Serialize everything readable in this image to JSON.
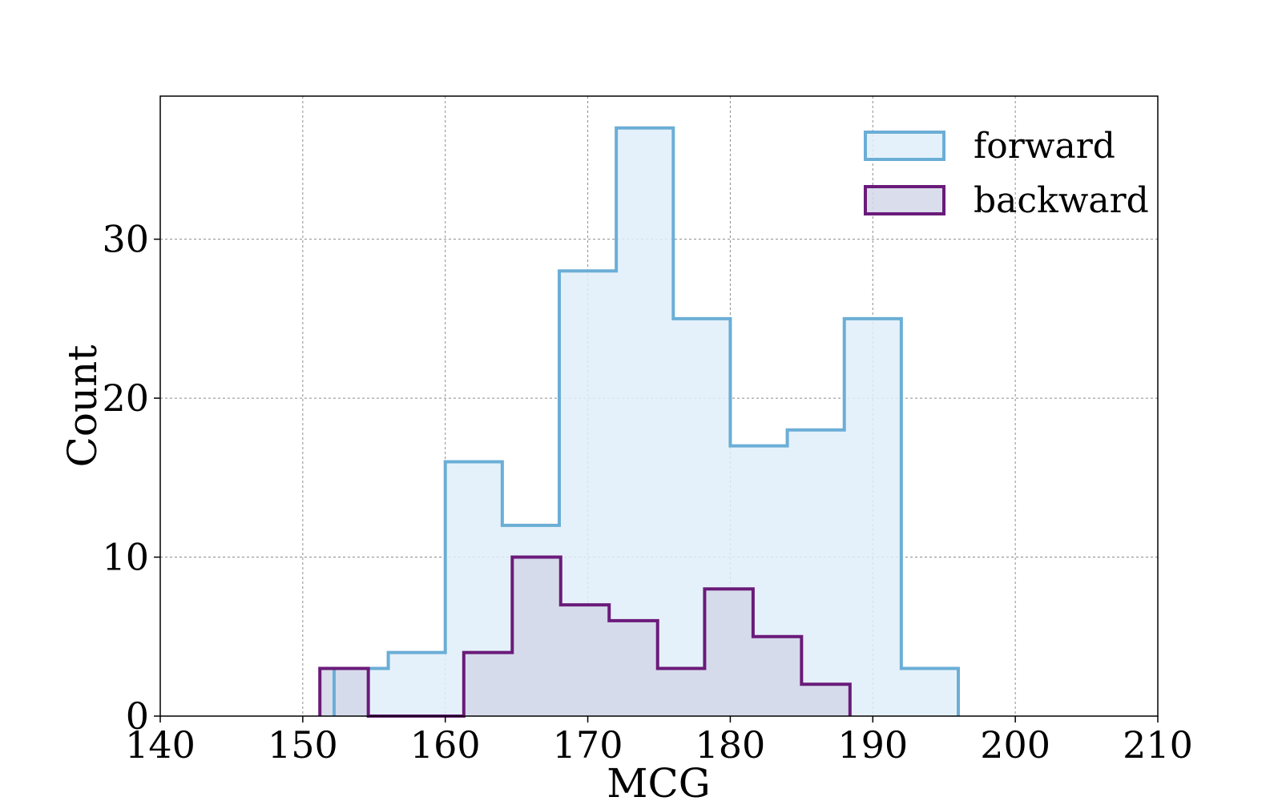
{
  "chart_data": {
    "type": "histogram",
    "title": "",
    "xlabel": "MCG",
    "ylabel": "Count",
    "xlim": [
      140,
      210
    ],
    "ylim": [
      0,
      39
    ],
    "xticks": [
      140,
      150,
      160,
      170,
      180,
      190,
      200,
      210
    ],
    "yticks": [
      0,
      10,
      20,
      30
    ],
    "grid": true,
    "legend_position": "top-right",
    "series": [
      {
        "name": "forward",
        "color": "#6baed6",
        "fill": "#e1eff9",
        "bin_edges": [
          152.2,
          156,
          160,
          164,
          168,
          172,
          176,
          180,
          184,
          188,
          192,
          196
        ],
        "counts": [
          3,
          4,
          16,
          12,
          28,
          37,
          25,
          17,
          18,
          25,
          3
        ]
      },
      {
        "name": "backward",
        "color": "#6a1b7a",
        "fill": "#d3d7e8",
        "bin_edges": [
          151.2,
          154.6,
          158,
          161.3,
          164.7,
          168.1,
          171.5,
          174.9,
          178.2,
          181.6,
          185,
          188.4
        ],
        "counts": [
          3,
          0,
          0,
          4,
          10,
          7,
          6,
          3,
          8,
          5,
          2
        ]
      }
    ]
  }
}
